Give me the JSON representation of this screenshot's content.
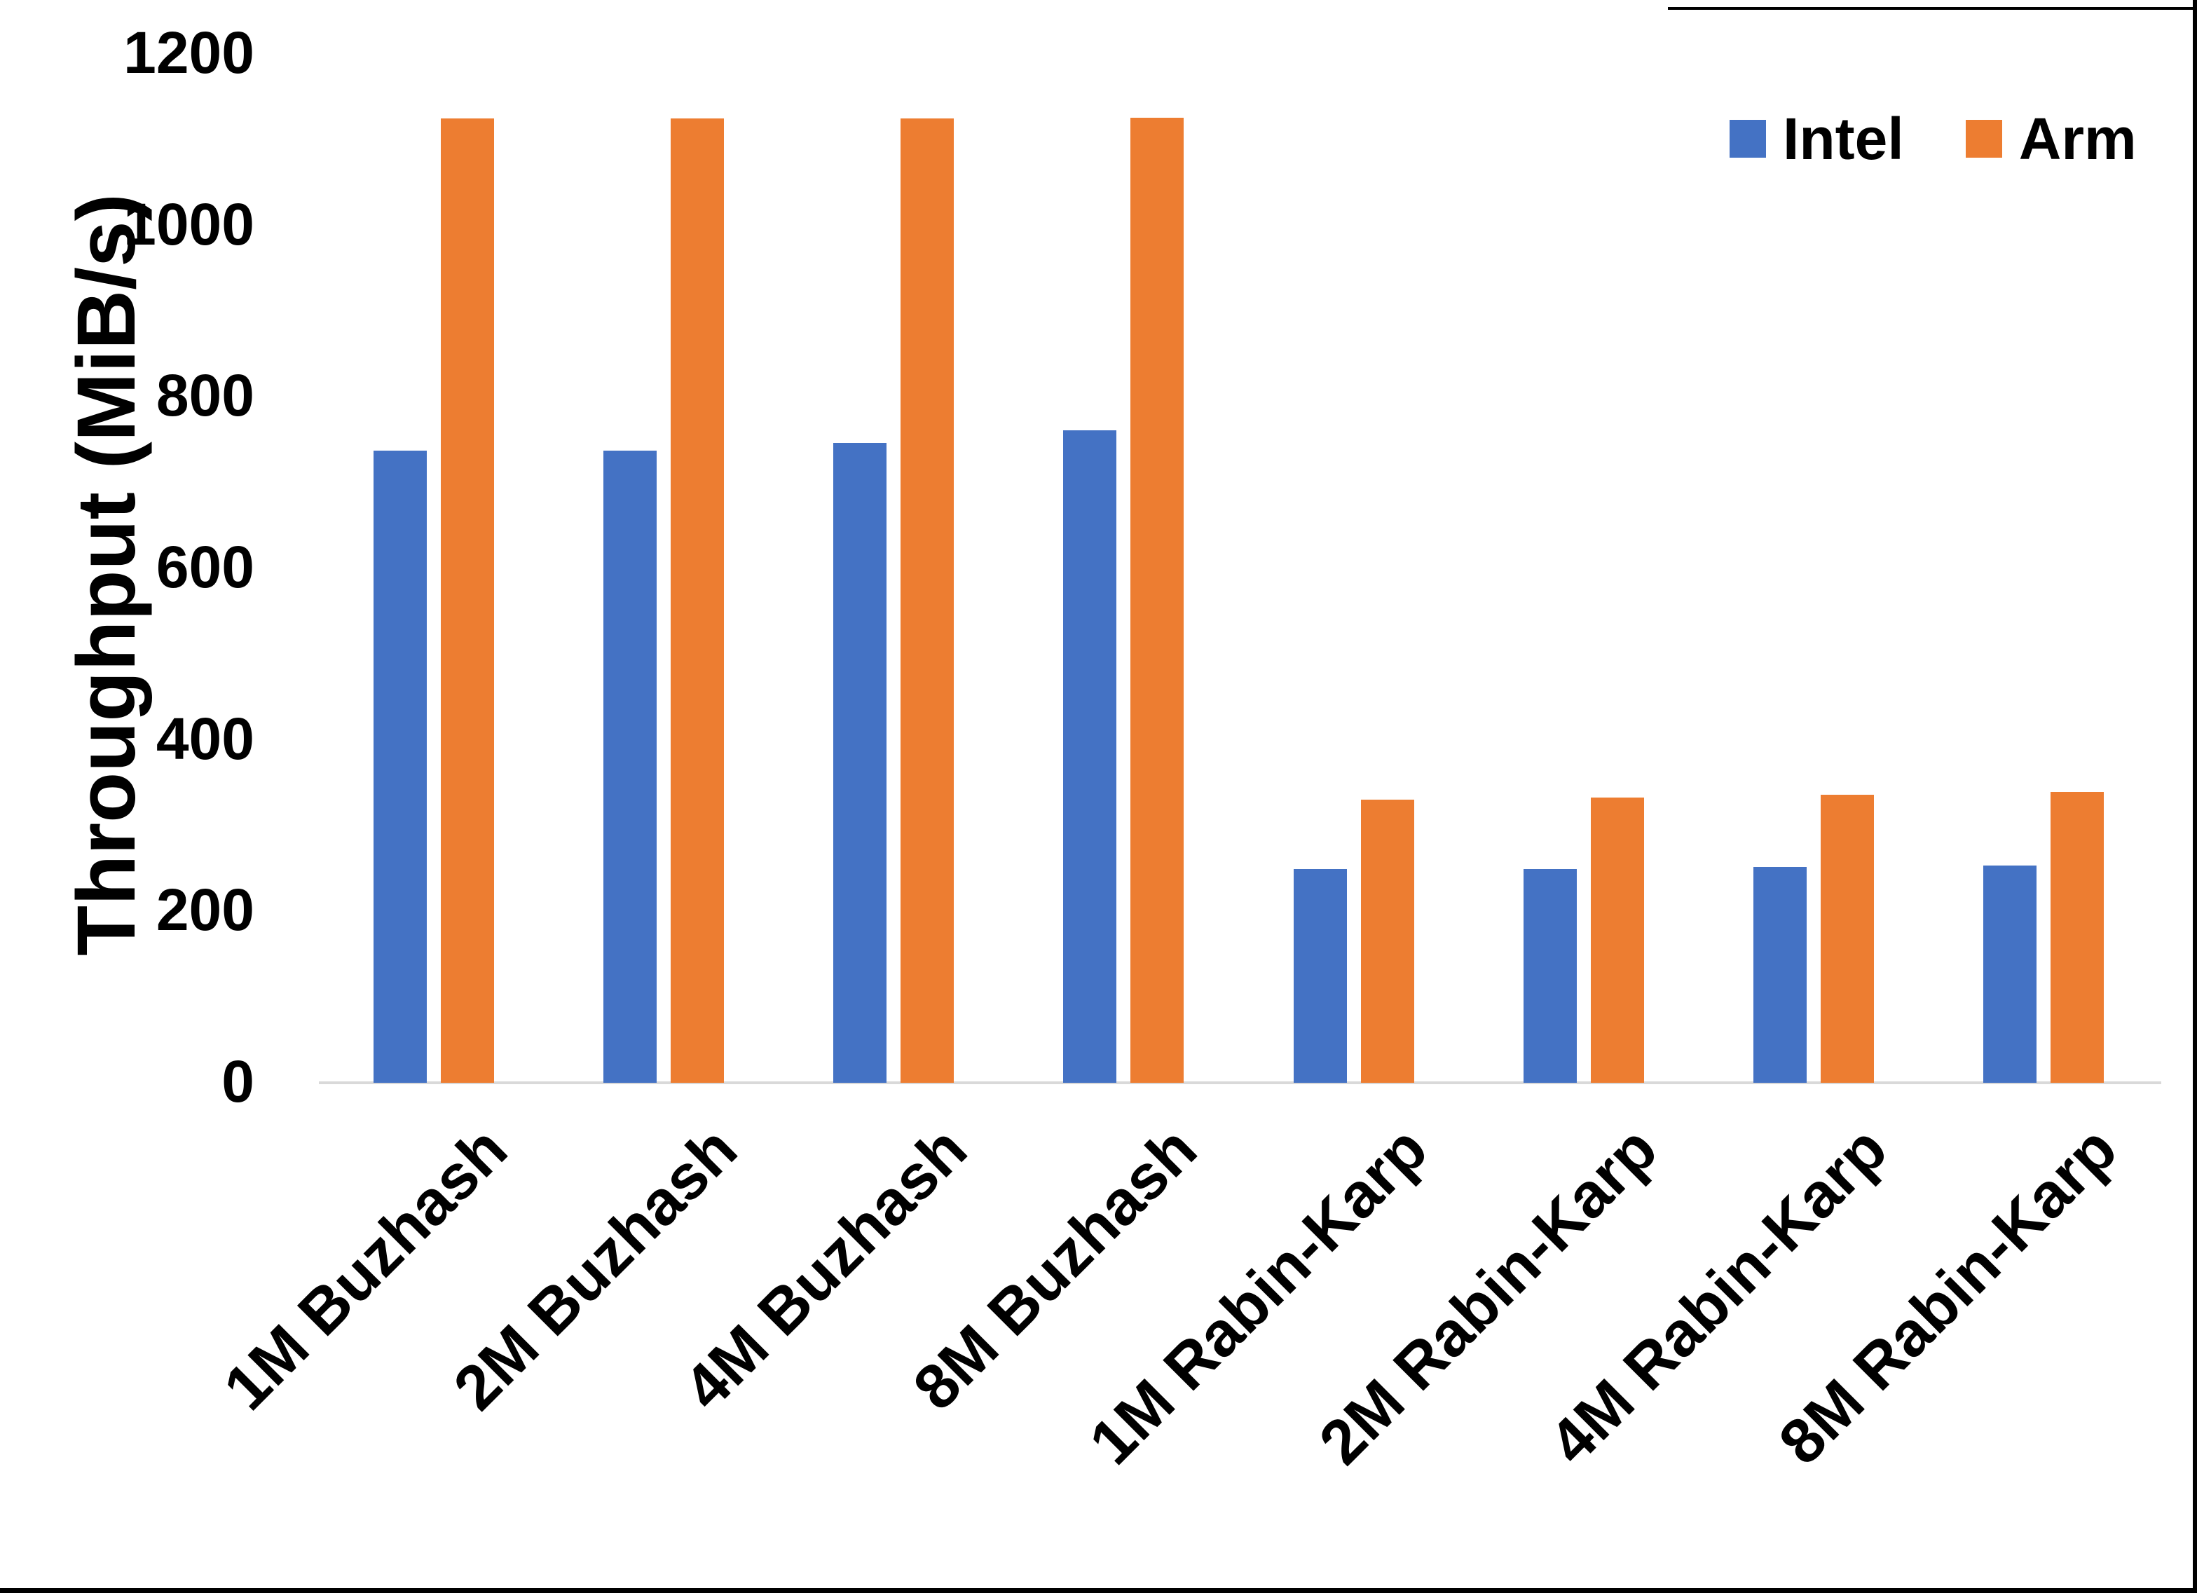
{
  "chart_data": {
    "type": "bar",
    "title": "",
    "xlabel": "",
    "ylabel": "Throughput (MiB/s)",
    "categories": [
      "1M Buzhash",
      "2M Buzhash",
      "4M Buzhash",
      "8M Buzhash",
      "1M Rabin-Karp",
      "2M Rabin-Karp",
      "4M Rabin-Karp",
      "8M Rabin-Karp"
    ],
    "series": [
      {
        "name": "Intel",
        "color": "#4472C4",
        "values": [
          737,
          737,
          746,
          761,
          249,
          249,
          252,
          253
        ]
      },
      {
        "name": "Arm",
        "color": "#ED7D31",
        "values": [
          1125,
          1125,
          1125,
          1126,
          330,
          333,
          336,
          339
        ]
      }
    ],
    "y_ticks": [
      0,
      200,
      400,
      600,
      800,
      1000,
      1200
    ],
    "ylim": [
      0,
      1200
    ],
    "grid": false,
    "legend_position": "top-right",
    "axis_line_color": "#D9D9D9",
    "text_color": "#000000",
    "background_color": "#FFFFFF",
    "edge_border_color": "#000000"
  }
}
